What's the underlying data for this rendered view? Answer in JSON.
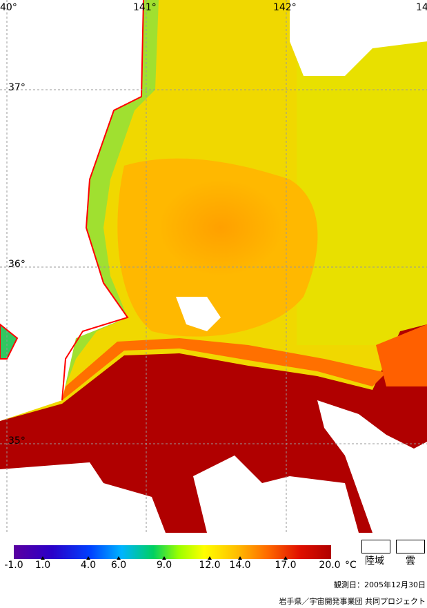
{
  "map": {
    "lon_labels": [
      "40°",
      "141°",
      "142°",
      "14"
    ],
    "lat_labels": [
      "37°",
      "36°",
      "35°"
    ]
  },
  "legend": {
    "ticks": [
      "-1.0",
      "1.0",
      "4.0",
      "6.0",
      "9.0",
      "12.0",
      "14.0",
      "17.0",
      "20.0"
    ],
    "unit": "°C",
    "land_label": "陸域",
    "cloud_label": "雲"
  },
  "footer": {
    "observation_date": "観測日：2005年12月30日",
    "credit": "岩手県／宇宙開発事業団 共同プロジェクト"
  },
  "colors": {
    "warm": "#b00000",
    "orange": "#ff9a00",
    "yellow": "#e8e800",
    "green": "#70e040",
    "coast": "#ff0000",
    "grid": "#999999"
  }
}
